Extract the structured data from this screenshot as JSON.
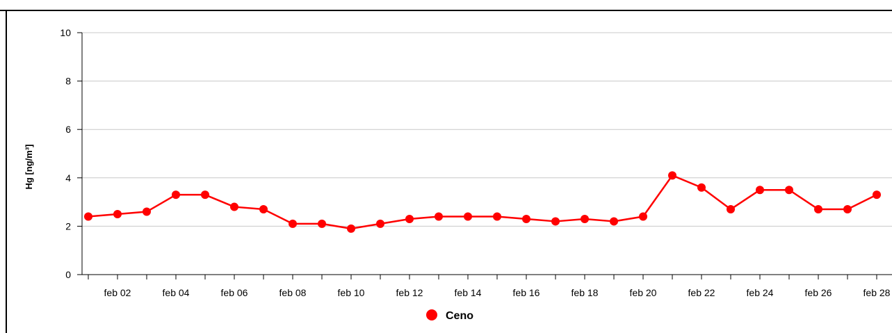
{
  "chart_data": {
    "type": "line",
    "ylabel": "Hg [ng/m³]",
    "xlabel": "",
    "ylim": [
      0,
      10
    ],
    "yticks": [
      0,
      2,
      4,
      6,
      8,
      10
    ],
    "grid": true,
    "legend_position": "bottom-center",
    "x": [
      "feb 01",
      "feb 02",
      "feb 03",
      "feb 04",
      "feb 05",
      "feb 06",
      "feb 07",
      "feb 08",
      "feb 09",
      "feb 10",
      "feb 11",
      "feb 12",
      "feb 13",
      "feb 14",
      "feb 15",
      "feb 16",
      "feb 17",
      "feb 18",
      "feb 19",
      "feb 20",
      "feb 21",
      "feb 22",
      "feb 23",
      "feb 24",
      "feb 25",
      "feb 26",
      "feb 27",
      "feb 28"
    ],
    "x_tick_labels": [
      "feb 02",
      "feb 04",
      "feb 06",
      "feb 08",
      "feb 10",
      "feb 12",
      "feb 14",
      "feb 16",
      "feb 18",
      "feb 20",
      "feb 22",
      "feb 24",
      "feb 26",
      "feb 28"
    ],
    "series": [
      {
        "name": "Ceno",
        "color": "#ff0000",
        "values": [
          2.4,
          2.5,
          2.6,
          3.3,
          3.3,
          2.8,
          2.7,
          2.1,
          2.1,
          1.9,
          2.1,
          2.3,
          2.4,
          2.4,
          2.4,
          2.3,
          2.2,
          2.3,
          2.2,
          2.4,
          4.1,
          3.6,
          2.7,
          3.5,
          3.5,
          2.7,
          2.7,
          3.3
        ]
      }
    ]
  },
  "colors": {
    "grid": "#c8c8c8",
    "axis": "#000000",
    "series": "#ff0000"
  }
}
